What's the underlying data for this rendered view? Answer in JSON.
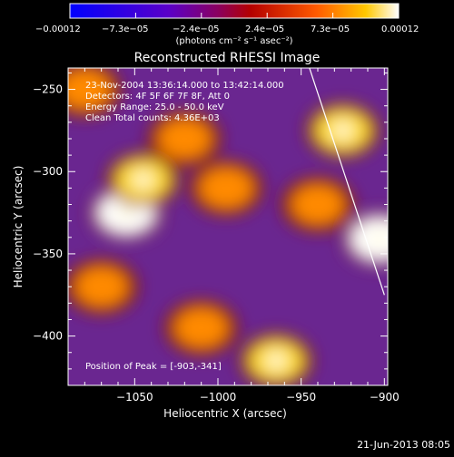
{
  "chart_data": {
    "type": "heatmap",
    "title": "Reconstructed RHESSI Image",
    "xlabel": "Heliocentric X (arcsec)",
    "ylabel": "Heliocentric Y (arcsec)",
    "xlim": [
      -1090,
      -898
    ],
    "ylim": [
      -430,
      -237
    ],
    "x_ticks": [
      {
        "value": -1050,
        "label": "−1050"
      },
      {
        "value": -1000,
        "label": "−1000"
      },
      {
        "value": -950,
        "label": "−950"
      },
      {
        "value": -900,
        "label": "−900"
      }
    ],
    "y_ticks": [
      {
        "value": -250,
        "label": "−250"
      },
      {
        "value": -300,
        "label": "−300"
      },
      {
        "value": -350,
        "label": "−350"
      },
      {
        "value": -400,
        "label": "−400"
      }
    ],
    "colorbar": {
      "range": [
        -0.00012,
        0.00012
      ],
      "tick_labels": [
        "−0.00012",
        "−7.3e−05",
        "−2.4e−05",
        "2.4e−05",
        "7.3e−05",
        "0.00012"
      ],
      "unit_label": "(photons cm⁻² s⁻¹ asec⁻²)",
      "colors": [
        "#0000ff",
        "#7a00b8",
        "#cc0000",
        "#ff5a00",
        "#ffc800",
        "#ffffff"
      ]
    },
    "annotations": {
      "time_range": "23-Nov-2004 13:36:14.000 to 13:42:14.000",
      "detectors": "Detectors: 4F 5F 6F 7F 8F, Att 0",
      "energy": "Energy Range: 25.0 - 50.0 keV",
      "clean": "Clean     Total counts: 4.36E+03",
      "peak": "Position of Peak = [-903,-341]"
    },
    "limb_line": [
      [
        -945,
        -237
      ],
      [
        -900,
        -375
      ]
    ],
    "sources": [
      {
        "x": -1055,
        "y": -325,
        "value": 0.00012
      },
      {
        "x": -1045,
        "y": -305,
        "value": 9e-05
      },
      {
        "x": -1020,
        "y": -280,
        "value": 7e-05
      },
      {
        "x": -995,
        "y": -310,
        "value": 8e-05
      },
      {
        "x": -1010,
        "y": -395,
        "value": 7e-05
      },
      {
        "x": -925,
        "y": -275,
        "value": 0.0001
      },
      {
        "x": -903,
        "y": -341,
        "value": 0.00012
      },
      {
        "x": -940,
        "y": -320,
        "value": 6e-05
      },
      {
        "x": -1080,
        "y": -250,
        "value": 6e-05
      },
      {
        "x": -965,
        "y": -415,
        "value": 9e-05
      },
      {
        "x": -1070,
        "y": -370,
        "value": 6e-05
      }
    ]
  },
  "footer_date": "21-Jun-2013 08:05"
}
